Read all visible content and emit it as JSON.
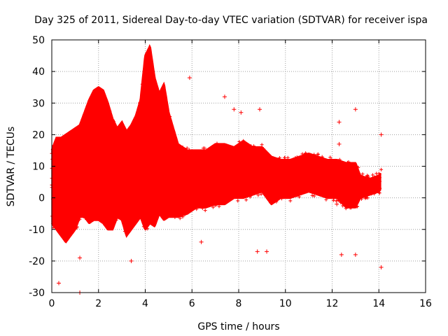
{
  "chart_data": {
    "type": "scatter",
    "title": "Day 325 of 2011, Sidereal Day-to-day VTEC variation (SDTVAR) for receiver ispa",
    "xlabel": "GPS time / hours",
    "ylabel": "SDTVAR / TECUs",
    "xlim": [
      0,
      16
    ],
    "ylim": [
      -30,
      50
    ],
    "x_ticks": [
      "0",
      "2",
      "4",
      "6",
      "8",
      "10",
      "12",
      "14",
      "16"
    ],
    "y_ticks": [
      "-30",
      "-20",
      "-10",
      "0",
      "10",
      "20",
      "30",
      "40",
      "50"
    ],
    "grid": true,
    "marker": "+",
    "series_color": "#ff0000",
    "envelope": {
      "x": [
        0.0,
        0.2,
        0.4,
        0.6,
        0.8,
        1.0,
        1.2,
        1.4,
        1.6,
        1.8,
        2.0,
        2.2,
        2.4,
        2.6,
        2.8,
        3.0,
        3.2,
        3.4,
        3.6,
        3.8,
        4.0,
        4.2,
        4.4,
        4.6,
        4.8,
        5.0,
        5.4,
        5.8,
        6.2,
        6.6,
        7.0,
        7.4,
        7.8,
        8.2,
        8.6,
        9.0,
        9.4,
        9.8,
        10.2,
        10.6,
        11.0,
        11.4,
        11.8,
        12.2,
        12.6,
        13.0,
        13.2,
        13.6,
        14.0,
        14.1
      ],
      "upper": [
        15,
        19,
        19,
        20,
        21,
        22,
        23,
        27,
        31,
        34,
        35,
        34,
        30,
        25,
        22,
        24,
        21,
        23,
        26,
        31,
        45,
        48,
        38,
        33,
        36,
        27,
        17,
        15,
        15,
        15,
        17,
        17,
        16,
        18,
        16,
        16,
        13,
        12,
        12,
        13,
        14,
        13,
        12,
        12,
        11,
        11,
        7,
        6,
        7,
        8
      ],
      "lower": [
        -8,
        -10,
        -12,
        -14,
        -12,
        -10,
        -6,
        -6,
        -8,
        -7,
        -7,
        -8,
        -10,
        -10,
        -6,
        -7,
        -12,
        -10,
        -8,
        -6,
        -10,
        -8,
        -9,
        -5,
        -7,
        -6,
        -6,
        -5,
        -3,
        -3,
        -2,
        -2,
        0,
        0,
        1,
        2,
        -2,
        0,
        0,
        1,
        2,
        1,
        0,
        0,
        -3,
        -3,
        0,
        1,
        2,
        3
      ]
    },
    "outliers": [
      {
        "x": 0.3,
        "y": -27
      },
      {
        "x": 1.2,
        "y": -30
      },
      {
        "x": 1.2,
        "y": -19
      },
      {
        "x": 3.4,
        "y": -20
      },
      {
        "x": 5.9,
        "y": 38
      },
      {
        "x": 7.4,
        "y": 32
      },
      {
        "x": 7.8,
        "y": 28
      },
      {
        "x": 8.1,
        "y": 27
      },
      {
        "x": 8.9,
        "y": 28
      },
      {
        "x": 12.3,
        "y": 24
      },
      {
        "x": 12.3,
        "y": 17
      },
      {
        "x": 12.4,
        "y": -18
      },
      {
        "x": 12.2,
        "y": -2
      },
      {
        "x": 13.0,
        "y": 28
      },
      {
        "x": 13.0,
        "y": -18
      },
      {
        "x": 14.1,
        "y": 20
      },
      {
        "x": 14.1,
        "y": -22
      },
      {
        "x": 6.4,
        "y": -14
      },
      {
        "x": 8.8,
        "y": -17
      },
      {
        "x": 9.2,
        "y": -17
      }
    ]
  }
}
